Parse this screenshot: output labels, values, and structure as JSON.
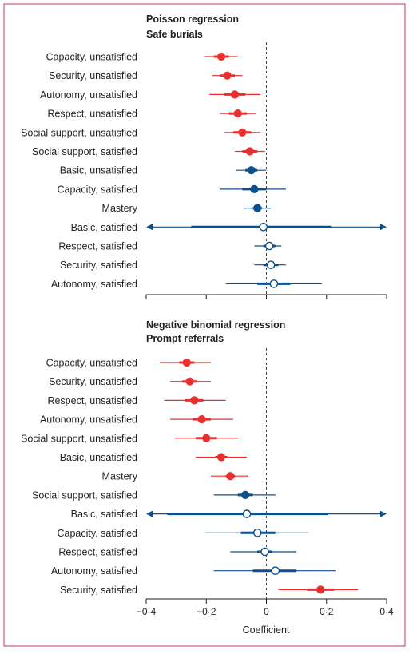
{
  "chart_data": [
    {
      "type": "forest",
      "title": "Poisson regression",
      "subtitle": "Safe burials",
      "xlim": [
        -0.4,
        0.4
      ],
      "x_ticks": [],
      "xlabel": "",
      "colors": {
        "red": "#e8312f",
        "blue": "#0d4f8b"
      },
      "rows": [
        {
          "label": "Capacity, unsatisfied",
          "estimate": -0.15,
          "inner": [
            -0.175,
            -0.125
          ],
          "ci": [
            -0.205,
            -0.095
          ],
          "color": "red",
          "marker": "filled"
        },
        {
          "label": "Security, unsatisfied",
          "estimate": -0.13,
          "inner": [
            -0.155,
            -0.105
          ],
          "ci": [
            -0.18,
            -0.08
          ],
          "color": "red",
          "marker": "filled"
        },
        {
          "label": "Autonomy, unsatisfied",
          "estimate": -0.105,
          "inner": [
            -0.14,
            -0.07
          ],
          "ci": [
            -0.19,
            -0.02
          ],
          "color": "red",
          "marker": "filled"
        },
        {
          "label": "Respect, unsatisfied",
          "estimate": -0.095,
          "inner": [
            -0.125,
            -0.065
          ],
          "ci": [
            -0.155,
            -0.035
          ],
          "color": "red",
          "marker": "filled"
        },
        {
          "label": "Social support, unsatisfied",
          "estimate": -0.08,
          "inner": [
            -0.11,
            -0.05
          ],
          "ci": [
            -0.14,
            -0.02
          ],
          "color": "red",
          "marker": "filled"
        },
        {
          "label": "Social support, satisfied",
          "estimate": -0.055,
          "inner": [
            -0.08,
            -0.03
          ],
          "ci": [
            -0.105,
            -0.005
          ],
          "color": "red",
          "marker": "filled"
        },
        {
          "label": "Basic, unsatisfied",
          "estimate": -0.05,
          "inner": [
            -0.07,
            -0.03
          ],
          "ci": [
            -0.1,
            0.0
          ],
          "color": "blue",
          "marker": "filled"
        },
        {
          "label": "Capacity, satisfied",
          "estimate": -0.04,
          "inner": [
            -0.08,
            0.0
          ],
          "ci": [
            -0.155,
            0.065
          ],
          "color": "blue",
          "marker": "filled"
        },
        {
          "label": "Mastery",
          "estimate": -0.03,
          "inner": [
            -0.045,
            -0.015
          ],
          "ci": [
            -0.075,
            0.015
          ],
          "color": "blue",
          "marker": "filled"
        },
        {
          "label": "Basic, satisfied",
          "estimate": -0.01,
          "inner": [
            -0.25,
            0.215
          ],
          "ci": [
            -0.4,
            0.4
          ],
          "color": "blue",
          "marker": "open",
          "arrows": true
        },
        {
          "label": "Respect, satisfied",
          "estimate": 0.01,
          "inner": [
            -0.01,
            0.03
          ],
          "ci": [
            -0.04,
            0.05
          ],
          "color": "blue",
          "marker": "open"
        },
        {
          "label": "Security, satisfied",
          "estimate": 0.015,
          "inner": [
            -0.01,
            0.04
          ],
          "ci": [
            -0.04,
            0.065
          ],
          "color": "blue",
          "marker": "open"
        },
        {
          "label": "Autonomy, satisfied",
          "estimate": 0.025,
          "inner": [
            -0.03,
            0.08
          ],
          "ci": [
            -0.135,
            0.185
          ],
          "color": "blue",
          "marker": "open"
        }
      ]
    },
    {
      "type": "forest",
      "title": "Negative binomial regression",
      "subtitle": "Prompt referrals",
      "xlim": [
        -0.4,
        0.4
      ],
      "x_ticks": [
        "−0·4",
        "−0·2",
        "0",
        "0·2",
        "0·4"
      ],
      "xlabel": "Coefficient",
      "colors": {
        "red": "#e8312f",
        "blue": "#0d4f8b"
      },
      "rows": [
        {
          "label": "Capacity, unsatisfied",
          "estimate": -0.265,
          "inner": [
            -0.29,
            -0.24
          ],
          "ci": [
            -0.355,
            -0.185
          ],
          "color": "red",
          "marker": "filled"
        },
        {
          "label": "Security, unsatisfied",
          "estimate": -0.255,
          "inner": [
            -0.28,
            -0.23
          ],
          "ci": [
            -0.32,
            -0.185
          ],
          "color": "red",
          "marker": "filled"
        },
        {
          "label": "Respect, unsatisfied",
          "estimate": -0.24,
          "inner": [
            -0.27,
            -0.21
          ],
          "ci": [
            -0.34,
            -0.135
          ],
          "color": "red",
          "marker": "filled"
        },
        {
          "label": "Autonomy, unsatisfied",
          "estimate": -0.215,
          "inner": [
            -0.245,
            -0.185
          ],
          "ci": [
            -0.32,
            -0.11
          ],
          "color": "red",
          "marker": "filled"
        },
        {
          "label": "Social support, unsatisfied",
          "estimate": -0.2,
          "inner": [
            -0.235,
            -0.165
          ],
          "ci": [
            -0.305,
            -0.095
          ],
          "color": "red",
          "marker": "filled"
        },
        {
          "label": "Basic, unsatisfied",
          "estimate": -0.15,
          "inner": [
            -0.17,
            -0.13
          ],
          "ci": [
            -0.235,
            -0.065
          ],
          "color": "red",
          "marker": "filled"
        },
        {
          "label": "Mastery",
          "estimate": -0.12,
          "inner": [
            -0.135,
            -0.105
          ],
          "ci": [
            -0.185,
            -0.06
          ],
          "color": "red",
          "marker": "filled"
        },
        {
          "label": "Social support, satisfied",
          "estimate": -0.07,
          "inner": [
            -0.095,
            -0.045
          ],
          "ci": [
            -0.175,
            0.03
          ],
          "color": "blue",
          "marker": "filled"
        },
        {
          "label": "Basic, satisfied",
          "estimate": -0.065,
          "inner": [
            -0.33,
            0.205
          ],
          "ci": [
            -0.4,
            0.4
          ],
          "color": "blue",
          "marker": "open",
          "arrows": true
        },
        {
          "label": "Capacity, satisfied",
          "estimate": -0.03,
          "inner": [
            -0.085,
            0.03
          ],
          "ci": [
            -0.205,
            0.14
          ],
          "color": "blue",
          "marker": "open"
        },
        {
          "label": "Respect, satisfied",
          "estimate": -0.005,
          "inner": [
            -0.03,
            0.02
          ],
          "ci": [
            -0.12,
            0.1
          ],
          "color": "blue",
          "marker": "open"
        },
        {
          "label": "Autonomy, satisfied",
          "estimate": 0.03,
          "inner": [
            -0.045,
            0.1
          ],
          "ci": [
            -0.175,
            0.23
          ],
          "color": "blue",
          "marker": "open"
        },
        {
          "label": "Security, satisfied",
          "estimate": 0.18,
          "inner": [
            0.135,
            0.225
          ],
          "ci": [
            0.04,
            0.305
          ],
          "color": "red",
          "marker": "filled"
        }
      ]
    }
  ]
}
